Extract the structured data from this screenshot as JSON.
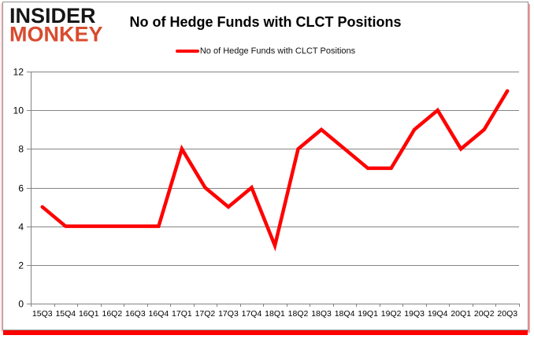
{
  "logo": {
    "line1": "INSIDER",
    "line2": "MONKEY"
  },
  "title": "No of Hedge Funds with CLCT Positions",
  "legend": {
    "label": "No of Hedge Funds with CLCT Positions"
  },
  "colors": {
    "line": "#ff0000",
    "grid": "#848484",
    "axis": "#848484",
    "text": "#000000",
    "logo_primary": "#161616",
    "logo_accent": "#d94b2e",
    "shadow": "#ff0000",
    "border": "#909090"
  },
  "chart_data": {
    "type": "line",
    "title": "No of Hedge Funds with CLCT Positions",
    "categories": [
      "15Q3",
      "15Q4",
      "16Q1",
      "16Q2",
      "16Q3",
      "16Q4",
      "17Q1",
      "17Q2",
      "17Q3",
      "17Q4",
      "18Q1",
      "18Q2",
      "18Q3",
      "18Q4",
      "19Q1",
      "19Q2",
      "19Q3",
      "19Q4",
      "20Q1",
      "20Q2",
      "20Q3"
    ],
    "series": [
      {
        "name": "No of Hedge Funds with CLCT Positions",
        "values": [
          5,
          4,
          4,
          4,
          4,
          4,
          8,
          6,
          5,
          6,
          3,
          8,
          9,
          8,
          7,
          7,
          9,
          10,
          8,
          9,
          11
        ]
      }
    ],
    "xlabel": "",
    "ylabel": "",
    "ylim": [
      0,
      12
    ],
    "yticks": [
      0,
      2,
      4,
      6,
      8,
      10,
      12
    ],
    "grid": true,
    "legend_position": "top"
  }
}
